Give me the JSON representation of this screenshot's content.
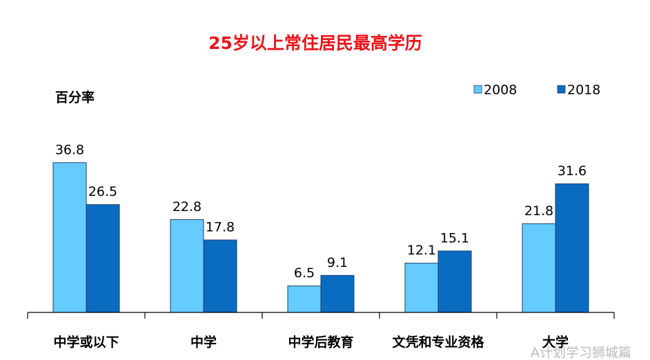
{
  "chart_data": {
    "type": "bar",
    "title": "25岁以上常住居民最高学历",
    "y_label": "百分率",
    "categories": [
      "中学或以下",
      "中学",
      "中学后教育",
      "文凭和专业资格",
      "大学"
    ],
    "series": [
      {
        "name": "2008",
        "color": "#66ccff",
        "values": [
          36.8,
          22.8,
          6.5,
          12.1,
          21.8
        ]
      },
      {
        "name": "2018",
        "color": "#0a6cc0",
        "values": [
          26.5,
          17.8,
          9.1,
          15.1,
          31.6
        ]
      }
    ],
    "ylim": [
      0,
      50
    ],
    "legend": "top-right",
    "watermark": "A计划学习狮城篇"
  }
}
